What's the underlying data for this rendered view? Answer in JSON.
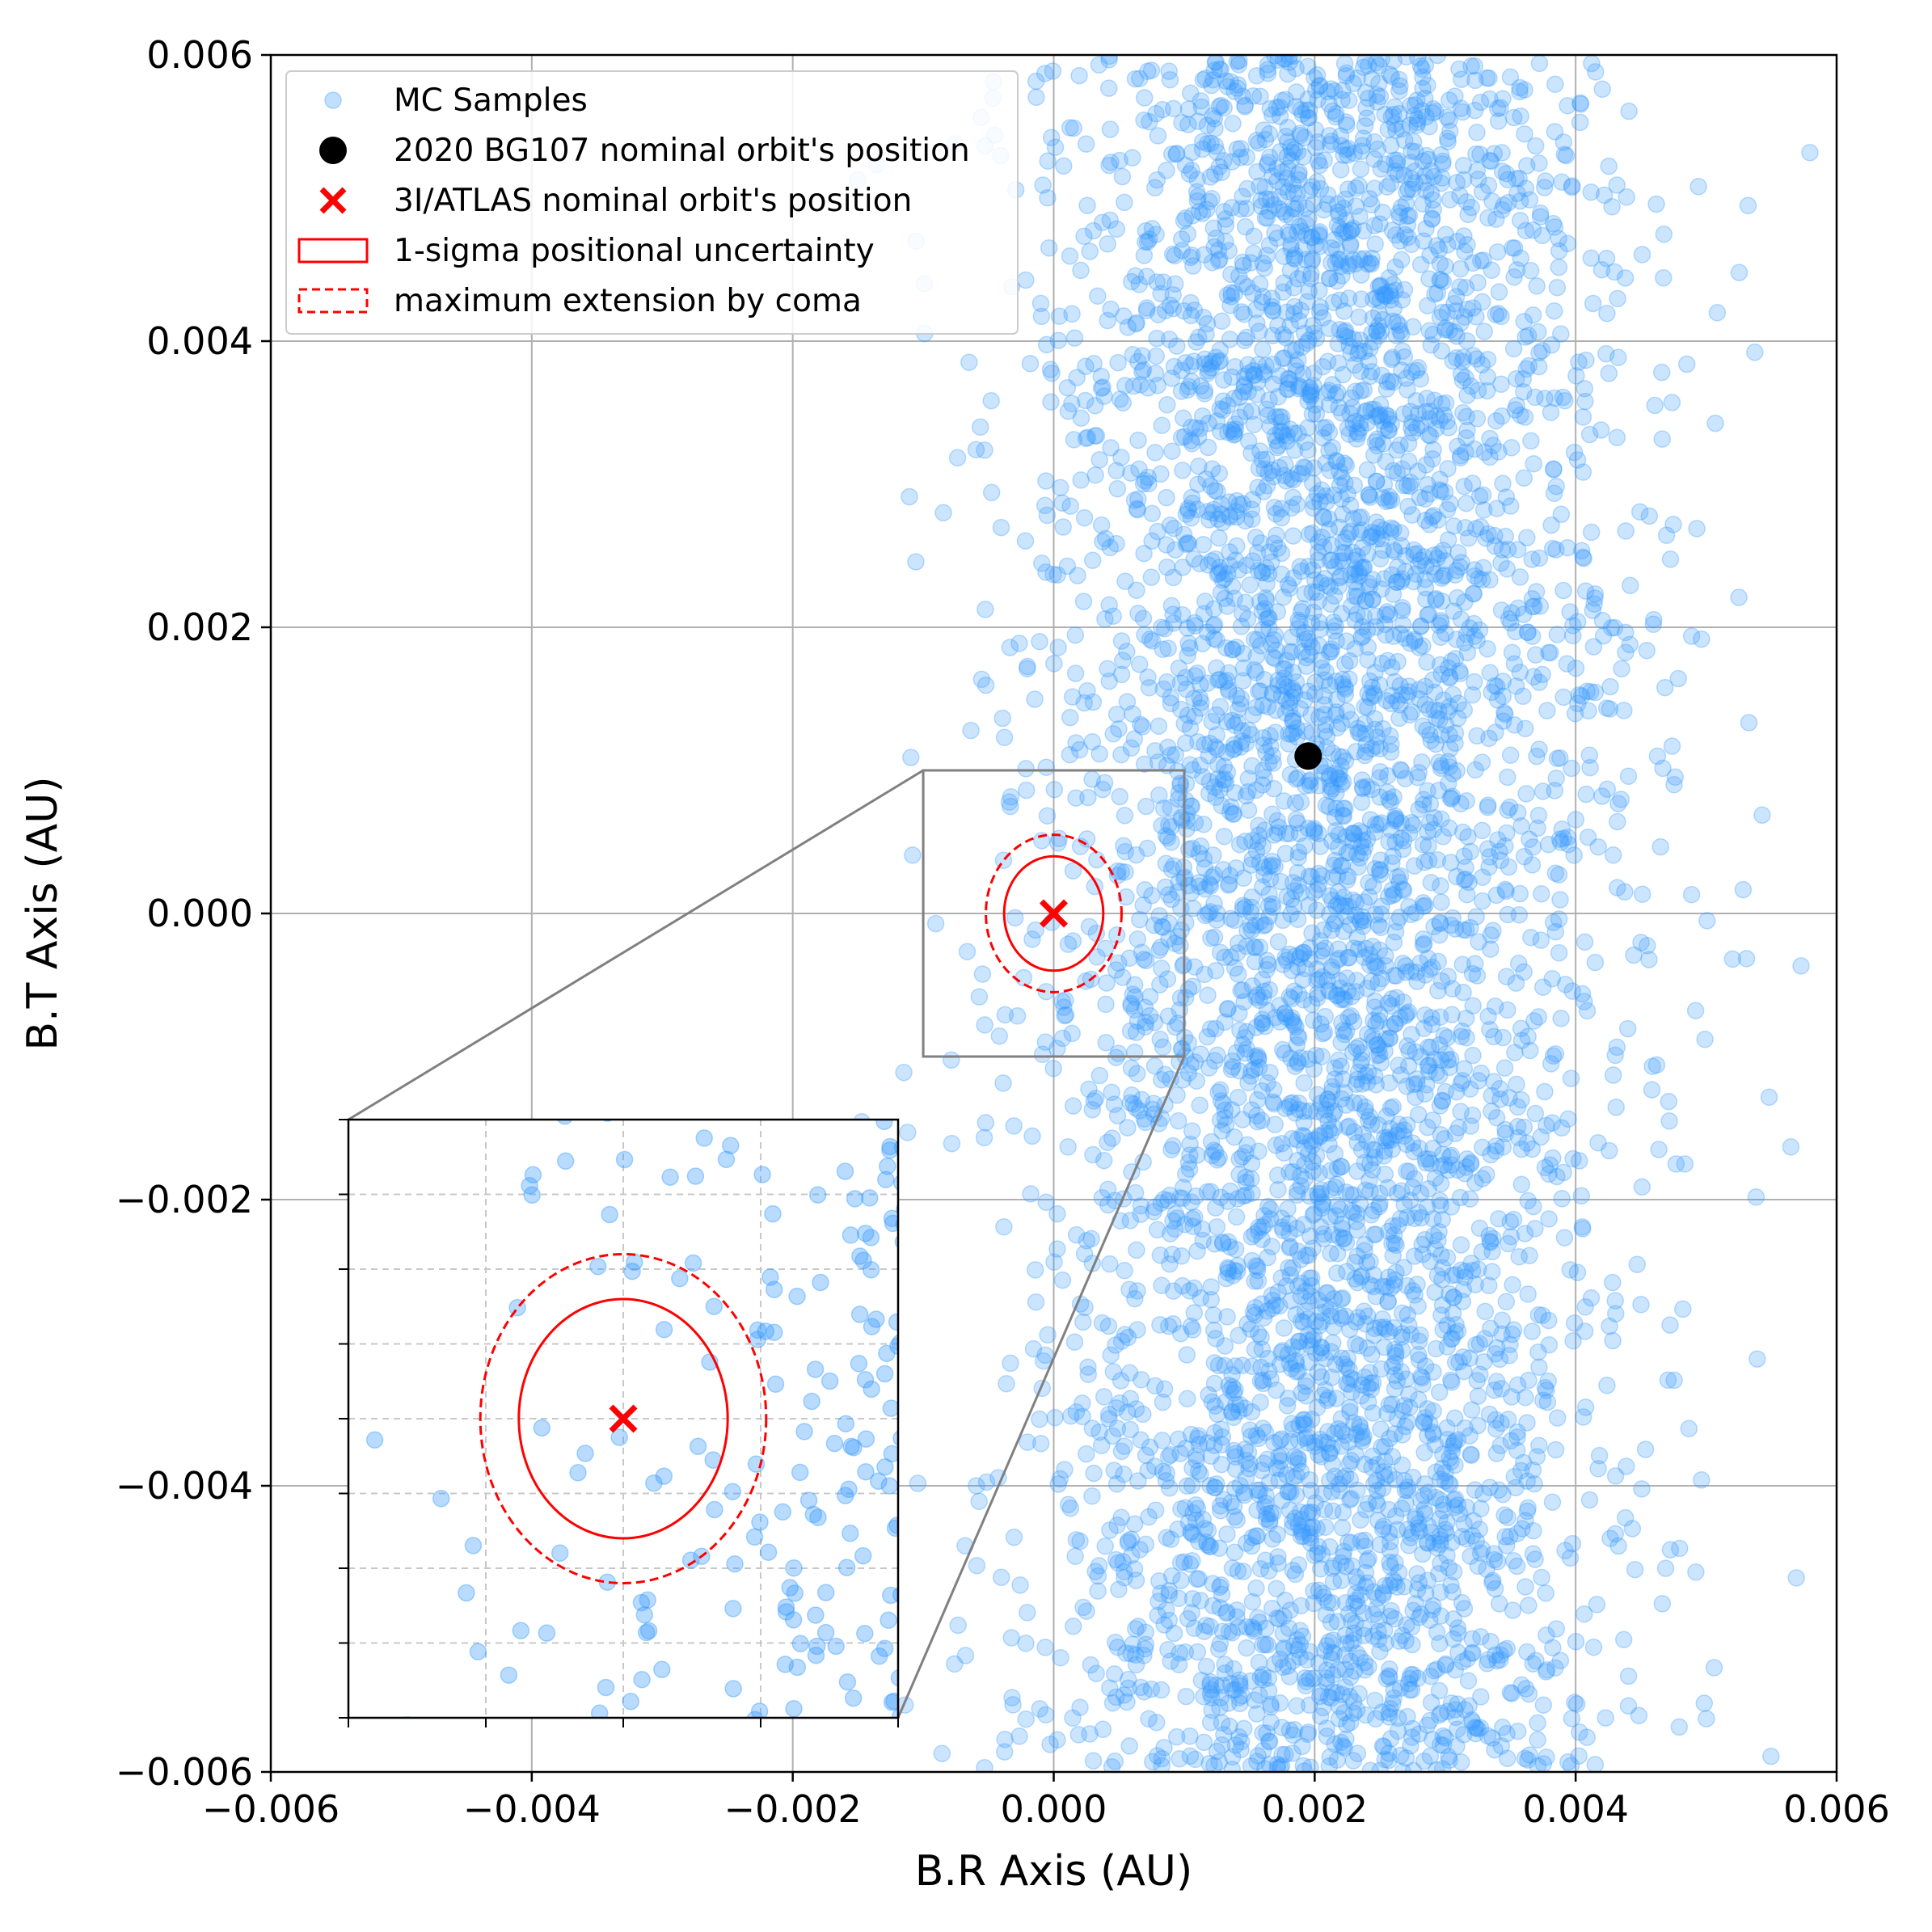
{
  "chart_data": {
    "type": "scatter",
    "title": "",
    "xlabel": "B.R Axis (AU)",
    "ylabel": "B.T Axis (AU)",
    "xlim": [
      -0.006,
      0.006
    ],
    "ylim": [
      -0.006,
      0.006
    ],
    "xticks": [
      -0.006,
      -0.004,
      -0.002,
      0.0,
      0.002,
      0.004,
      0.006
    ],
    "yticks": [
      -0.006,
      -0.004,
      -0.002,
      0.0,
      0.002,
      0.004,
      0.006
    ],
    "xtick_labels": [
      "−0.006",
      "−0.004",
      "−0.002",
      "0.000",
      "0.002",
      "0.004",
      "0.006"
    ],
    "ytick_labels": [
      "−0.006",
      "−0.004",
      "−0.002",
      "0.000",
      "0.002",
      "0.004",
      "0.006"
    ],
    "grid": true,
    "legend_position": "top-left",
    "series": [
      {
        "name": "MC Samples",
        "kind": "scatter",
        "color": "#3399ff",
        "alpha": 0.25,
        "distribution": {
          "n": 5200,
          "br_mean": 0.0021,
          "br_sd": 0.0011,
          "bt_range": [
            -0.006,
            0.006
          ],
          "seed": 107
        }
      },
      {
        "name": "2020 BG107 nominal orbit's position",
        "kind": "point",
        "color": "#000000",
        "x": 0.00195,
        "y": 0.0011
      },
      {
        "name": "3I/ATLAS nominal orbit's position",
        "kind": "cross",
        "color": "#ff0000",
        "x": 0.0,
        "y": 0.0
      },
      {
        "name": "1-sigma positional uncertainty",
        "kind": "ellipse",
        "color": "#ff0000",
        "center": [
          0.0,
          0.0
        ],
        "radius_x": 0.00038,
        "radius_y": 0.0004
      },
      {
        "name": "maximum extension by coma",
        "kind": "ellipse-dashed",
        "color": "#ff0000",
        "center": [
          0.0,
          0.0
        ],
        "radius_x": 0.00052,
        "radius_y": 0.00055
      }
    ],
    "inset": {
      "xlim": [
        -0.001,
        0.001
      ],
      "ylim": [
        -0.001,
        0.001
      ],
      "grid": "dashed",
      "tick_labels": false,
      "zoom_box_color": "#808080"
    }
  }
}
